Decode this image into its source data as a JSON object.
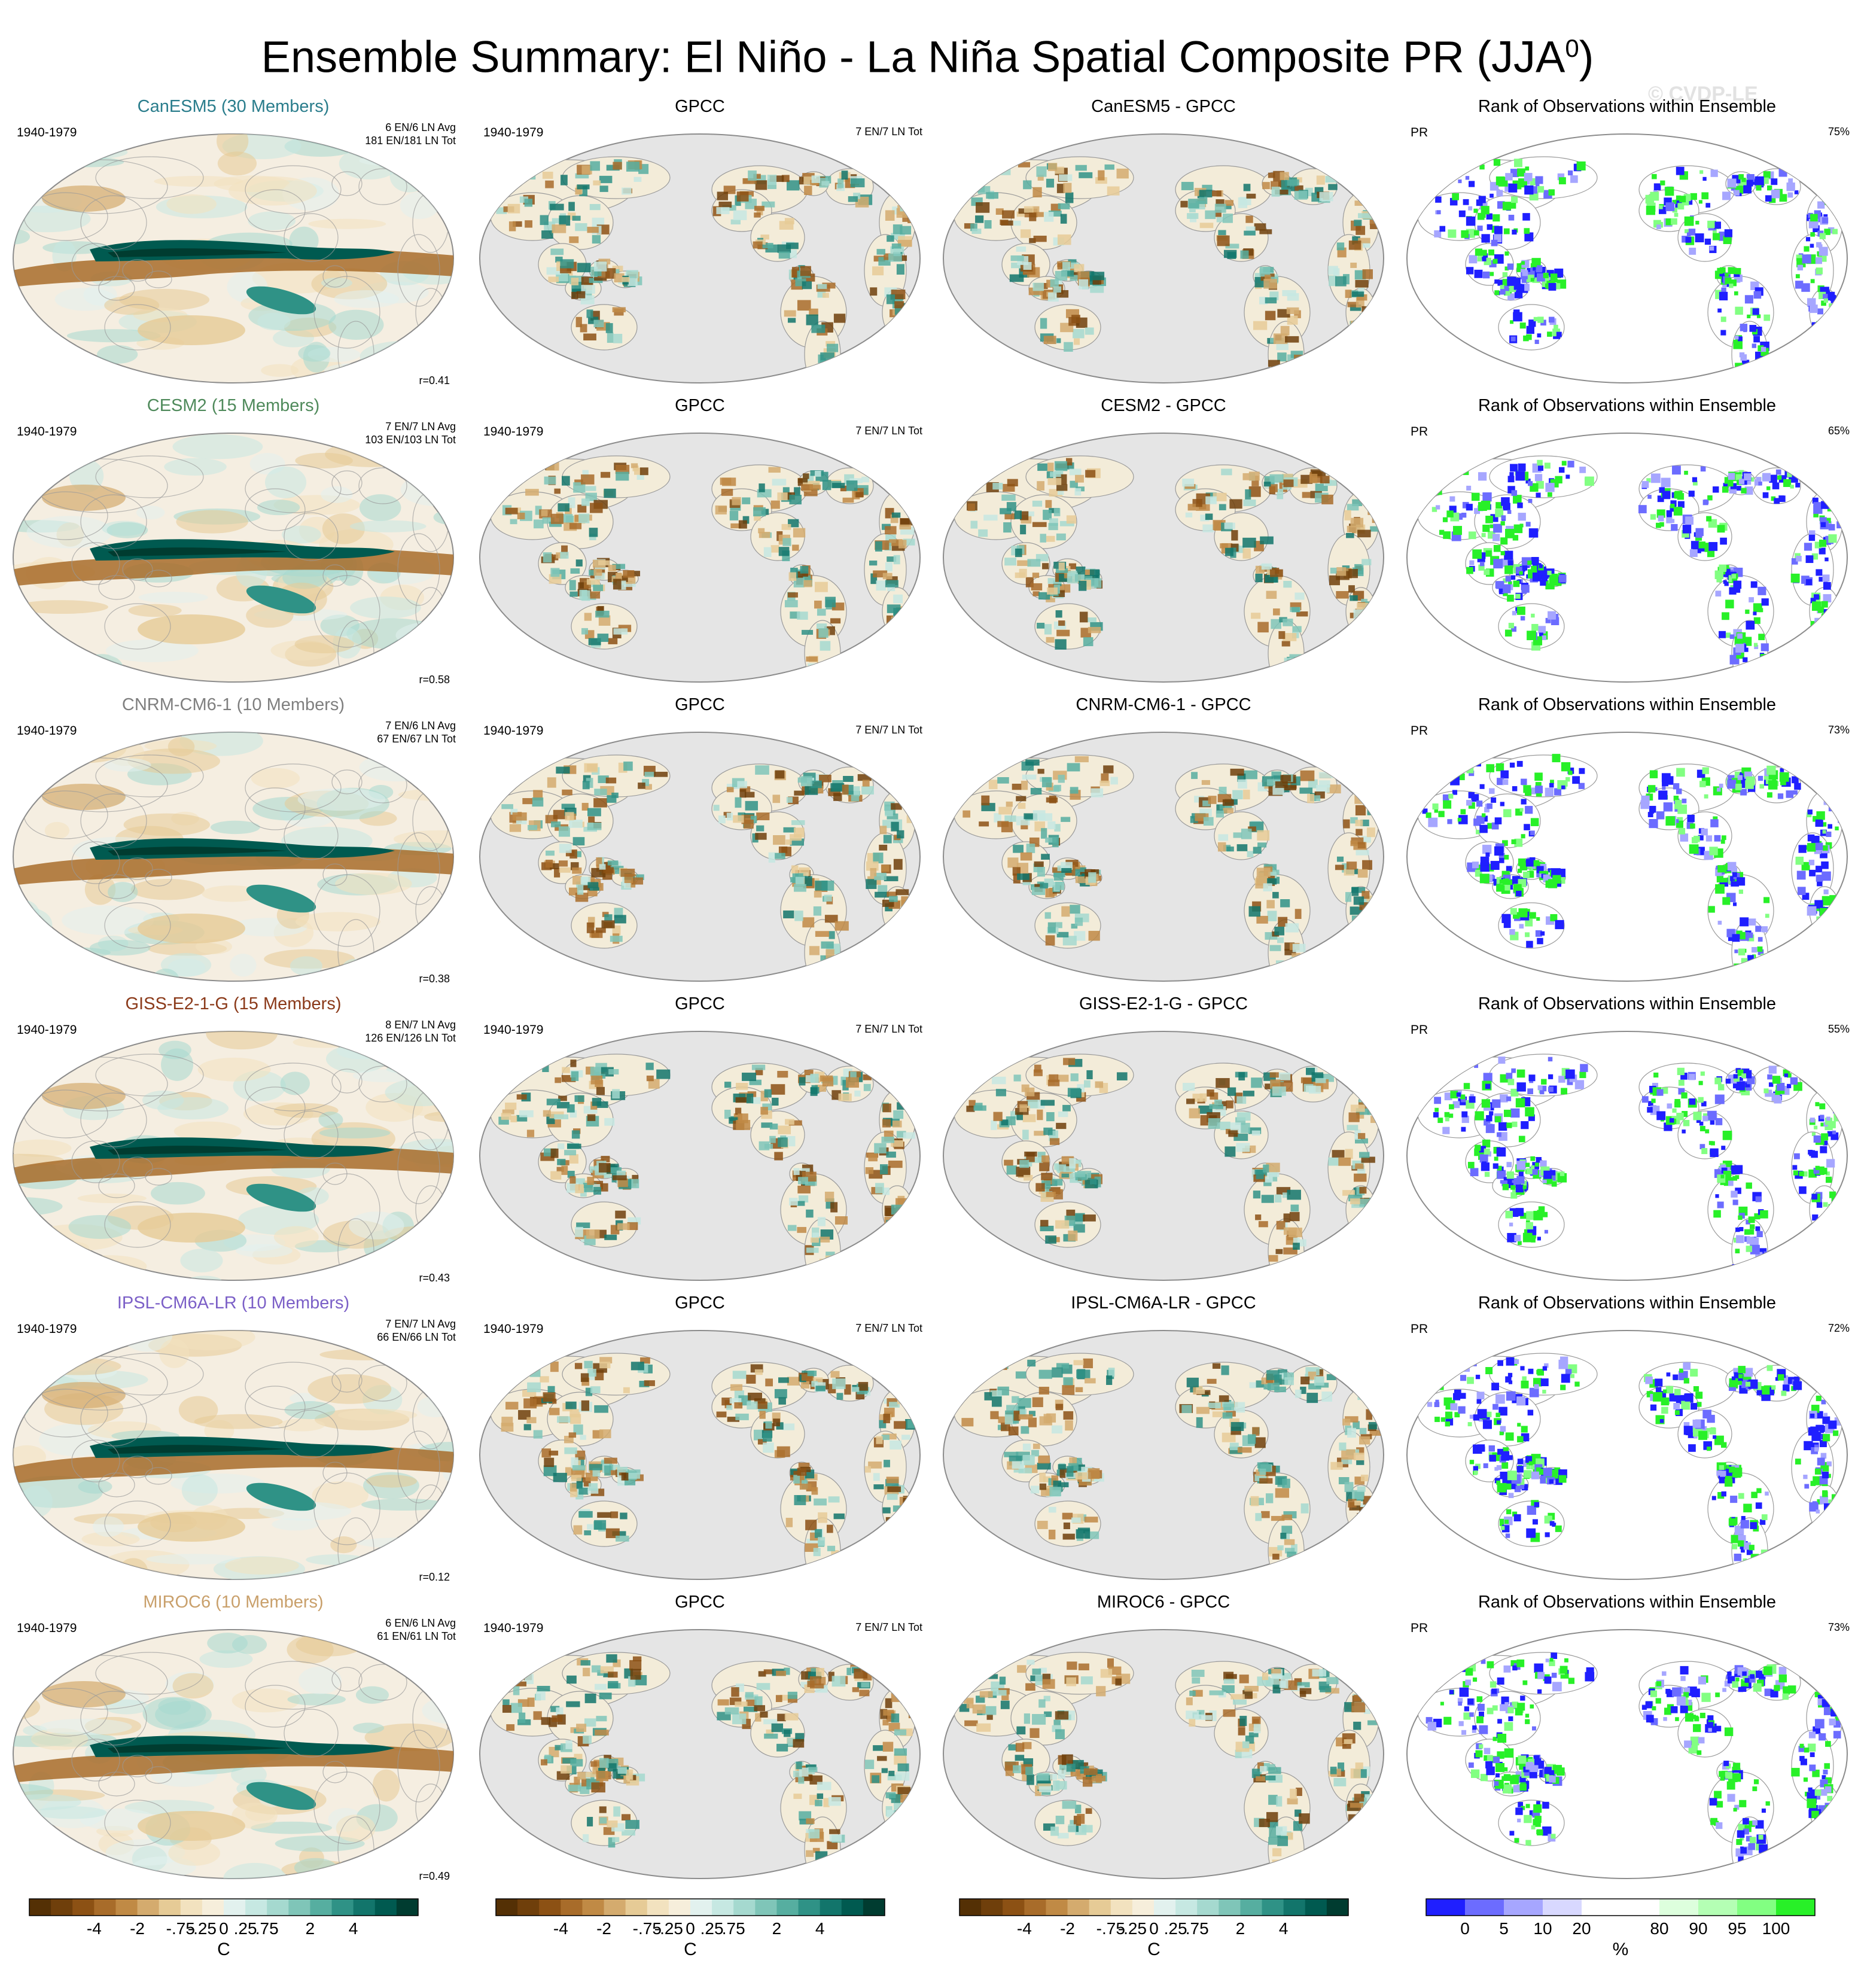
{
  "title_main": "Ensemble Summary: El Niño - La Niña Spatial Composite PR (JJA",
  "title_sup": "0",
  "title_close": ")",
  "watermark": "© CVDP-LE",
  "rows": [
    {
      "model": "CanESM5 (30 Members)",
      "model_color": "#2a7d8c",
      "years": "1940-1979",
      "stats1": "6 EN/6 LN Avg",
      "stats2": "181 EN/181 LN Tot",
      "r": "r=0.41",
      "gpcc_years": "1940-1979",
      "gpcc_stats": "7 EN/7 LN Tot",
      "diff": "CanESM5 - GPCC",
      "rank_title": "Rank of Observations within Ensemble",
      "rank_var": "PR",
      "rank_pct": "75%"
    },
    {
      "model": "CESM2 (15 Members)",
      "model_color": "#4f8a5b",
      "years": "1940-1979",
      "stats1": "7 EN/7 LN Avg",
      "stats2": "103 EN/103 LN Tot",
      "r": "r=0.58",
      "gpcc_years": "1940-1979",
      "gpcc_stats": "7 EN/7 LN Tot",
      "diff": "CESM2 - GPCC",
      "rank_title": "Rank of Observations within Ensemble",
      "rank_var": "PR",
      "rank_pct": "65%"
    },
    {
      "model": "CNRM-CM6-1 (10 Members)",
      "model_color": "#7f7f7f",
      "years": "1940-1979",
      "stats1": "7 EN/6 LN Avg",
      "stats2": "67 EN/67 LN Tot",
      "r": "r=0.38",
      "gpcc_years": "1940-1979",
      "gpcc_stats": "7 EN/7 LN Tot",
      "diff": "CNRM-CM6-1 - GPCC",
      "rank_title": "Rank of Observations within Ensemble",
      "rank_var": "PR",
      "rank_pct": "73%"
    },
    {
      "model": "GISS-E2-1-G (15 Members)",
      "model_color": "#8b3a1a",
      "years": "1940-1979",
      "stats1": "8 EN/7 LN Avg",
      "stats2": "126 EN/126 LN Tot",
      "r": "r=0.43",
      "gpcc_years": "1940-1979",
      "gpcc_stats": "7 EN/7 LN Tot",
      "diff": "GISS-E2-1-G - GPCC",
      "rank_title": "Rank of Observations within Ensemble",
      "rank_var": "PR",
      "rank_pct": "55%"
    },
    {
      "model": "IPSL-CM6A-LR (10 Members)",
      "model_color": "#7b5fc7",
      "years": "1940-1979",
      "stats1": "7 EN/7 LN Avg",
      "stats2": "66 EN/66 LN Tot",
      "r": "r=0.12",
      "gpcc_years": "1940-1979",
      "gpcc_stats": "7 EN/7 LN Tot",
      "diff": "IPSL-CM6A-LR - GPCC",
      "rank_title": "Rank of Observations within Ensemble",
      "rank_var": "PR",
      "rank_pct": "72%"
    },
    {
      "model": "MIROC6 (10 Members)",
      "model_color": "#c9a06b",
      "years": "1940-1979",
      "stats1": "6 EN/6 LN Avg",
      "stats2": "61 EN/61 LN Tot",
      "r": "r=0.49",
      "gpcc_years": "1940-1979",
      "gpcc_stats": "7 EN/7 LN Tot",
      "diff": "MIROC6 - GPCC",
      "rank_title": "Rank of Observations within Ensemble",
      "rank_var": "PR",
      "rank_pct": "73%"
    }
  ],
  "gpcc_title": "GPCC",
  "colorbar_brbg": {
    "colors": [
      "#543005",
      "#6f3f0b",
      "#8c5114",
      "#a86c2a",
      "#c08a45",
      "#d4ab6e",
      "#e6cb96",
      "#f2e2bf",
      "#f6eedb",
      "#e2f1ee",
      "#c6e8e2",
      "#a5d9cf",
      "#7fc5b8",
      "#56aea0",
      "#2f9286",
      "#12756b",
      "#005a50",
      "#003c30"
    ],
    "ticks": [
      "-4",
      "-2",
      "-.75",
      "-.25",
      "0",
      ".25",
      ".75",
      "2",
      "4"
    ],
    "unit": "C"
  },
  "colorbar_rank": {
    "colors": [
      "#1f1fff",
      "#6c6cff",
      "#a6a6ff",
      "#d8d8ff",
      "#ffffff",
      "#ffffff",
      "#ddffdd",
      "#b4ffb4",
      "#82ff82",
      "#28f028"
    ],
    "ticks": [
      "0",
      "5",
      "10",
      "20",
      "80",
      "90",
      "95",
      "100"
    ],
    "unit": "%"
  }
}
